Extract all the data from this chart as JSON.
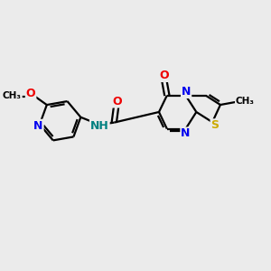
{
  "background_color": "#ebebeb",
  "bond_color": "#000000",
  "bond_width": 1.6,
  "atom_colors": {
    "N": "#0000ee",
    "O": "#ee0000",
    "S": "#ccaa00",
    "C": "#000000",
    "NH": "#008080"
  },
  "figsize": [
    3.0,
    3.0
  ],
  "dpi": 100,
  "xlim": [
    0,
    10
  ],
  "ylim": [
    0,
    10
  ]
}
